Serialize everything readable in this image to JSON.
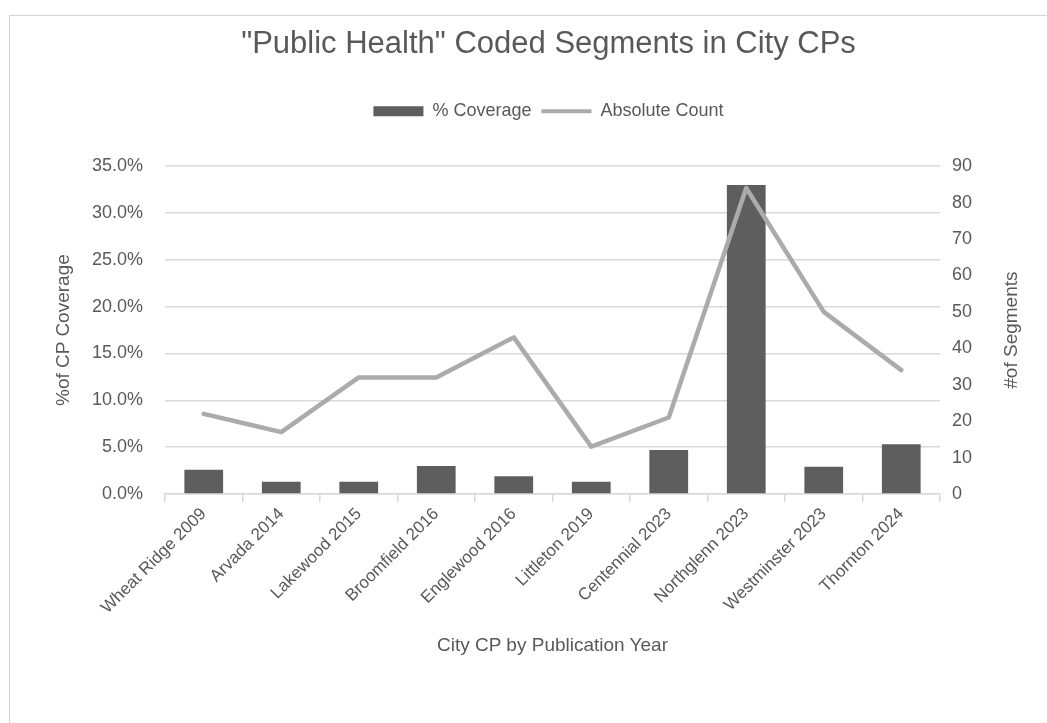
{
  "chart_data": {
    "type": "bar",
    "title": "\"Public Health\" Coded Segments in City CPs",
    "xlabel": "City CP by Publication Year",
    "ylabel": "%of CP Coverage",
    "y2label": "#of Segments",
    "categories": [
      "Wheat Ridge 2009",
      "Arvada 2014",
      "Lakewood 2015",
      "Broomfield 2016",
      "Englewood 2016",
      "Littleton 2019",
      "Centennial 2023",
      "Northglenn 2023",
      "Westminster 2023",
      "Thornton 2024"
    ],
    "series": [
      {
        "name": "% Coverage",
        "color": "#5e5e5e",
        "values": [
          2.6,
          1.3,
          1.3,
          3.0,
          1.9,
          1.3,
          4.7,
          33.0,
          2.9,
          5.3
        ]
      },
      {
        "name": "Absolute Count",
        "type": "line",
        "axis": "y2",
        "color": "#ababab",
        "values": [
          22,
          17,
          32,
          32,
          43,
          13,
          21,
          84,
          50,
          34
        ]
      }
    ],
    "ylim": [
      0,
      35
    ],
    "yticks": [
      {
        "value": 0,
        "label": "0.0%"
      },
      {
        "value": 5,
        "label": "5.0%"
      },
      {
        "value": 10,
        "label": "10.0%"
      },
      {
        "value": 15,
        "label": "15.0%"
      },
      {
        "value": 20,
        "label": "20.0%"
      },
      {
        "value": 25,
        "label": "25.0%"
      },
      {
        "value": 30,
        "label": "30.0%"
      },
      {
        "value": 35,
        "label": "35.0%"
      }
    ],
    "y2lim": [
      0,
      90
    ],
    "y2ticks": [
      0,
      10,
      20,
      30,
      40,
      50,
      60,
      70,
      80,
      90
    ],
    "grid": "y",
    "legend": "top",
    "marker": "none",
    "line_style": "solid"
  }
}
